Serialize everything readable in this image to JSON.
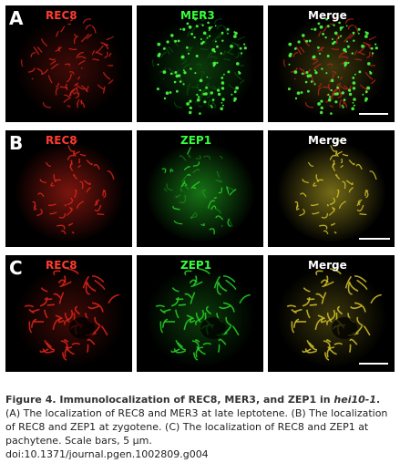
{
  "colors": {
    "red_channel": "#e0261a",
    "green_channel": "#28d226",
    "merge": "#d4c32a",
    "label_red": "#ff3b2f",
    "label_green": "#35ff3a",
    "label_white": "#ffffff"
  },
  "rows": [
    {
      "letter": "A",
      "labels": [
        "REC8",
        "MER3",
        "Merge"
      ],
      "pattern": "punctate"
    },
    {
      "letter": "B",
      "labels": [
        "REC8",
        "ZEP1",
        "Merge"
      ],
      "pattern": "diffuse"
    },
    {
      "letter": "C",
      "labels": [
        "REC8",
        "ZEP1",
        "Merge"
      ],
      "pattern": "threads"
    }
  ],
  "caption": {
    "lead": "Figure 4. Immunolocalization of REC8, MER3, and ZEP1 in ",
    "gene": "hei10-1",
    "lead_end": ".",
    "body": " (A) The localization of REC8 and MER3 at late leptotene. (B) The localization of REC8 and ZEP1 at zygotene. (C) The localization of REC8 and ZEP1 at pachytene. Scale bars, 5 µm.",
    "doi": "doi:10.1371/journal.pgen.1002809.g004"
  }
}
